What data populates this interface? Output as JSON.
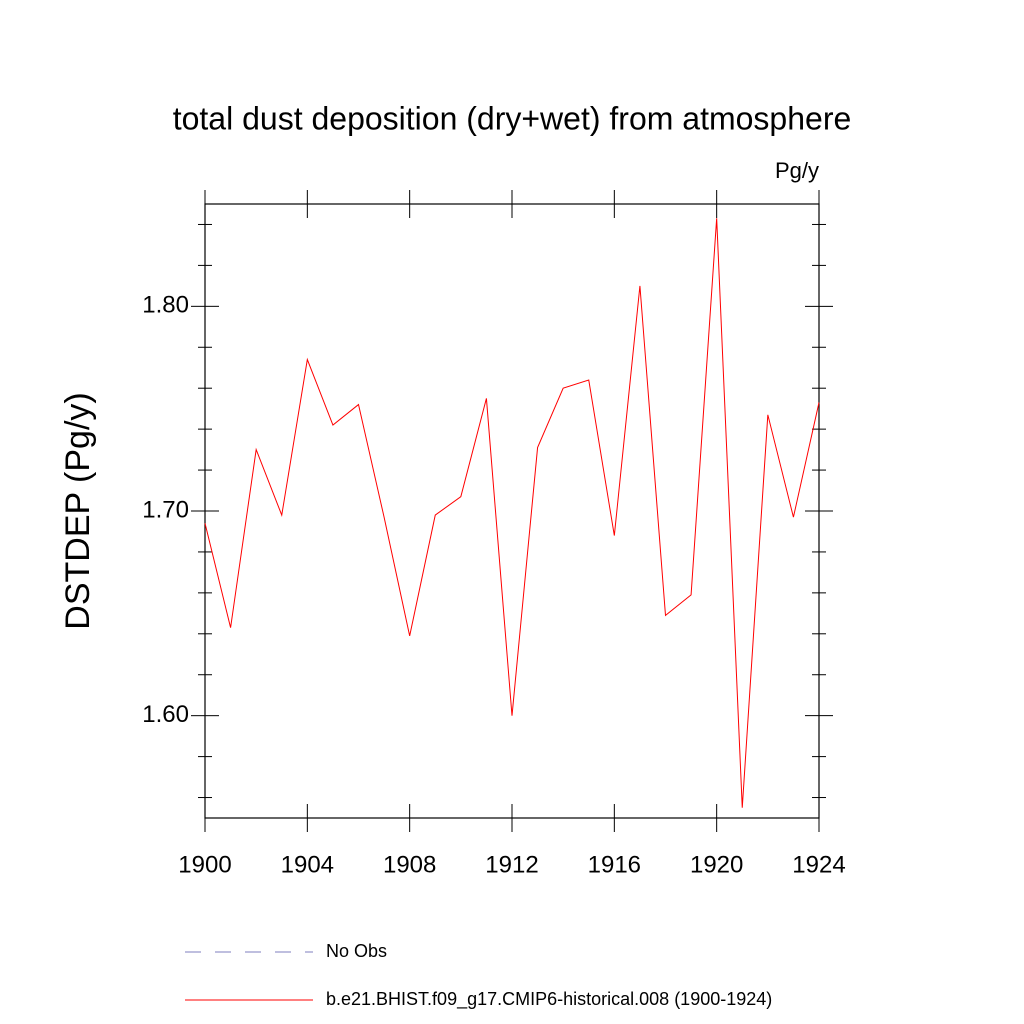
{
  "chart_data": {
    "type": "line",
    "title": "total dust deposition (dry+wet) from atmosphere",
    "units": "Pg/y",
    "y_label": "DSTDEP  (Pg/y)",
    "x": [
      1900,
      1901,
      1902,
      1903,
      1904,
      1905,
      1906,
      1907,
      1908,
      1909,
      1910,
      1911,
      1912,
      1913,
      1914,
      1915,
      1916,
      1917,
      1918,
      1919,
      1920,
      1921,
      1922,
      1923,
      1924
    ],
    "series": [
      {
        "name": "No Obs",
        "color": "#7f7fbf",
        "dash": true,
        "values": [
          null,
          null,
          null,
          null,
          null,
          null,
          null,
          null,
          null,
          null,
          null,
          null,
          null,
          null,
          null,
          null,
          null,
          null,
          null,
          null,
          null,
          null,
          null,
          null,
          null
        ]
      },
      {
        "name": "b.e21.BHIST.f09_g17.CMIP6-historical.008 (1900-1924)",
        "color": "#ff0000",
        "values": [
          1.694,
          1.643,
          1.73,
          1.698,
          1.774,
          1.742,
          1.752,
          1.697,
          1.639,
          1.698,
          1.707,
          1.755,
          1.6,
          1.731,
          1.76,
          1.764,
          1.688,
          1.81,
          1.649,
          1.659,
          1.843,
          1.555,
          1.747,
          1.697,
          1.753
        ]
      }
    ],
    "xlim": [
      1900,
      1924
    ],
    "xticks": [
      1900,
      1904,
      1908,
      1912,
      1916,
      1920,
      1924
    ],
    "ylim": [
      1.55,
      1.85
    ],
    "yticks": [
      {
        "value": 1.6,
        "label": "1.60"
      },
      {
        "value": 1.7,
        "label": "1.70"
      },
      {
        "value": 1.8,
        "label": "1.80"
      }
    ],
    "yminorticks": [
      1.56,
      1.58,
      1.62,
      1.64,
      1.66,
      1.68,
      1.72,
      1.74,
      1.76,
      1.78,
      1.82,
      1.84
    ]
  }
}
